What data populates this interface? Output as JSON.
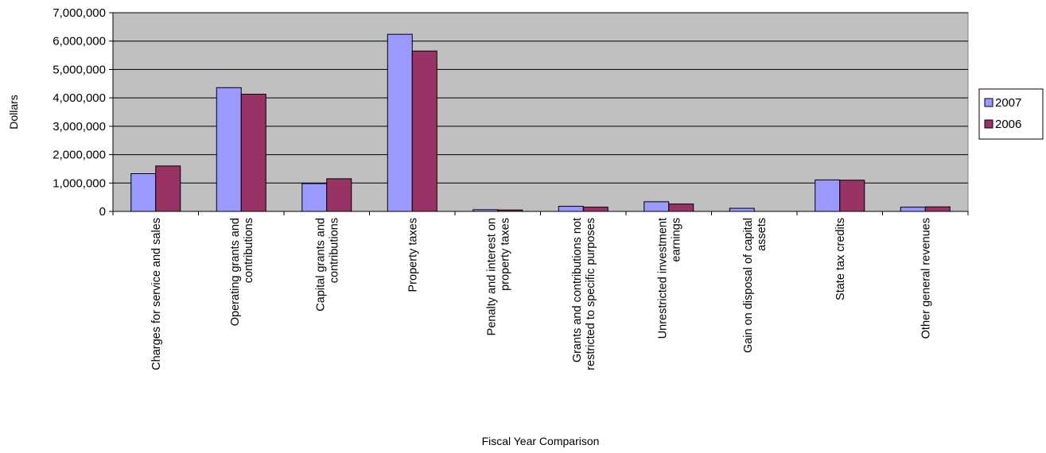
{
  "chart_data": {
    "type": "bar",
    "title": "",
    "xlabel": "Fiscal Year Comparison",
    "ylabel": "Dollars",
    "ylim": [
      0,
      7000000
    ],
    "yticks": [
      0,
      1000000,
      2000000,
      3000000,
      4000000,
      5000000,
      6000000,
      7000000
    ],
    "ytick_labels": [
      "0",
      "1,000,000",
      "2,000,000",
      "3,000,000",
      "4,000,000",
      "5,000,000",
      "6,000,000",
      "7,000,000"
    ],
    "grid": true,
    "legend_position": "right",
    "categories": [
      "Charges for service and sales",
      "Operating grants and contributions",
      "Capital grants and contributions",
      "Property taxes",
      "Penalty and interest on property taxes",
      "Grants and contributions not restricted to specific purposes",
      "Unrestricted investment earnings",
      "Gain on disposal of capital assets",
      "State tax credits",
      "Other general revenues"
    ],
    "category_label_lines": [
      [
        "Charges for service and sales"
      ],
      [
        "Operating grants and",
        "contributions"
      ],
      [
        "Capital grants and",
        "contributions"
      ],
      [
        "Property taxes"
      ],
      [
        "Penalty and interest on",
        "property taxes"
      ],
      [
        "Grants and contributions not",
        "restricted to specific purposes"
      ],
      [
        "Unrestricted investment",
        "earnings"
      ],
      [
        "Gain on disposal of capital",
        "assets"
      ],
      [
        "State tax credits"
      ],
      [
        "Other general revenues"
      ]
    ],
    "series": [
      {
        "name": "2007",
        "color": "#9999ff",
        "values": [
          1330000,
          4360000,
          980000,
          6240000,
          60000,
          180000,
          340000,
          110000,
          1110000,
          150000
        ]
      },
      {
        "name": "2006",
        "color": "#993366",
        "values": [
          1600000,
          4130000,
          1150000,
          5650000,
          50000,
          150000,
          260000,
          0,
          1100000,
          160000
        ]
      }
    ],
    "plot_background": "#c0c0c0"
  }
}
